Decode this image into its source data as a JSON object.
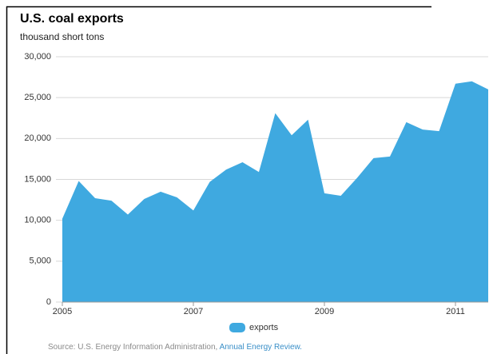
{
  "chart_data": {
    "type": "area",
    "title": "U.S. coal exports",
    "subtitle": "thousand short tons",
    "x": [
      2005,
      2005.25,
      2005.5,
      2005.75,
      2006,
      2006.25,
      2006.5,
      2006.75,
      2007,
      2007.25,
      2007.5,
      2007.75,
      2008,
      2008.25,
      2008.5,
      2008.75,
      2009,
      2009.25,
      2009.5,
      2009.75,
      2010,
      2010.25,
      2010.5,
      2010.75,
      2011,
      2011.25,
      2011.5
    ],
    "series": [
      {
        "name": "exports",
        "color": "#3fa9e0",
        "values": [
          10200,
          14800,
          12700,
          12400,
          10700,
          12600,
          13500,
          12800,
          11200,
          14700,
          16200,
          17100,
          15900,
          23100,
          20400,
          22300,
          13300,
          13000,
          15200,
          17600,
          17800,
          22000,
          21100,
          20900,
          26700,
          27000,
          26000
        ]
      }
    ],
    "xlim": [
      2005,
      2011.5
    ],
    "xticks": [
      2005,
      2007,
      2009,
      2011
    ],
    "ylim": [
      0,
      30000
    ],
    "yticks": [
      0,
      {
        "value": 5000,
        "label": "5,000"
      },
      {
        "value": 10000,
        "label": "10,000"
      },
      {
        "value": 15000,
        "label": "15,000"
      },
      {
        "value": 20000,
        "label": "20,000"
      },
      {
        "value": 25000,
        "label": "25,000"
      },
      {
        "value": 30000,
        "label": "30,000"
      }
    ],
    "grid": true,
    "source": {
      "text": "Source: U.S. Energy Information Administration,",
      "link": "Annual Energy Review."
    }
  }
}
